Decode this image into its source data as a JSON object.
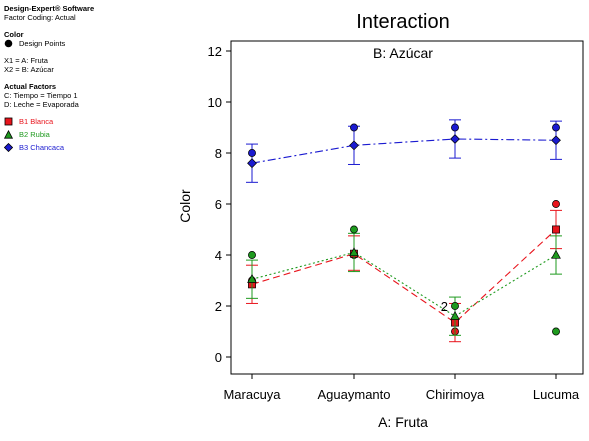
{
  "legend_panel": {
    "software": "Design-Expert® Software",
    "coding": "Factor Coding: Actual",
    "response_heading": "Color",
    "design_points": "Design Points",
    "x1": "X1 = A: Fruta",
    "x2": "X2 = B: Azúcar",
    "actual_factors_heading": "Actual Factors",
    "factor_c": "C: Tiempo = Tiempo 1",
    "factor_d": "D: Leche = Evaporada"
  },
  "colors": {
    "B1 Blanca": "#e8141c",
    "B2 Rubia": "#1e9a1e",
    "B3 Chancaca": "#1a1ad0"
  },
  "chart_data": {
    "type": "line",
    "title": "Interaction",
    "subtitle": "B: Azúcar",
    "xlabel": "A: Fruta",
    "ylabel": "Color",
    "categories": [
      "Maracuya",
      "Aguaymanto",
      "Chirimoya",
      "Lucuma"
    ],
    "ylim": [
      -0.8,
      13.2
    ],
    "yticks": [
      0,
      2,
      4,
      6,
      8,
      10,
      12
    ],
    "series": [
      {
        "name": "B1 Blanca",
        "marker": "square",
        "line_style": "dash",
        "values": [
          2.85,
          4.05,
          1.35,
          5.0
        ],
        "ci_low": [
          2.1,
          3.4,
          0.6,
          4.25
        ],
        "ci_high": [
          3.6,
          4.75,
          2.1,
          5.75
        ],
        "points": [
          [
            0,
            3.0
          ],
          [
            1,
            4.0
          ],
          [
            2,
            1.0
          ],
          [
            3,
            6.0
          ]
        ]
      },
      {
        "name": "B2 Rubia",
        "marker": "triangle",
        "line_style": "dot",
        "values": [
          3.05,
          4.1,
          1.6,
          4.0
        ],
        "ci_low": [
          2.3,
          3.35,
          0.85,
          3.25
        ],
        "ci_high": [
          3.8,
          4.85,
          2.35,
          4.75
        ],
        "points": [
          [
            0,
            4.0
          ],
          [
            1,
            5.0
          ],
          [
            2,
            2.0
          ],
          [
            3,
            1.0
          ]
        ]
      },
      {
        "name": "B3 Chancaca",
        "marker": "diamond",
        "line_style": "dashdot",
        "values": [
          7.6,
          8.3,
          8.55,
          8.5
        ],
        "ci_low": [
          6.85,
          7.55,
          7.8,
          7.75
        ],
        "ci_high": [
          8.35,
          9.05,
          9.3,
          9.25
        ],
        "points": [
          [
            0,
            8.0
          ],
          [
            1,
            9.0
          ],
          [
            2,
            9.0
          ],
          [
            3,
            9.0
          ]
        ]
      }
    ],
    "annotations": [
      {
        "text": "2",
        "x_index": 2,
        "y": 2.0
      }
    ],
    "grid": false,
    "legend_position": "left-panel"
  }
}
